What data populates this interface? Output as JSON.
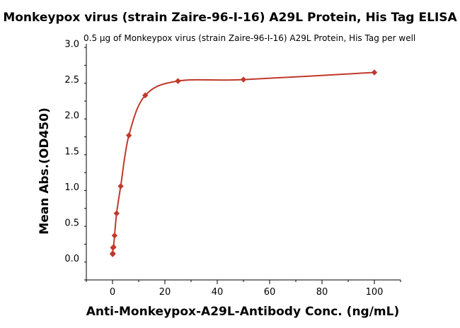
{
  "chart_data": {
    "type": "scatter",
    "title": "Monkeypox virus (strain Zaire-96-I-16) A29L Protein, His Tag ELISA",
    "subtitle": "0.5 μg of Monkeypox virus (strain Zaire-96-I-16) A29L Protein, His Tag per well",
    "xlabel": "Anti-Monkeypox-A29L-Antibody Conc. (ng/mL)",
    "ylabel": "Mean Abs.(OD450)",
    "xlim": [
      -10,
      110
    ],
    "ylim": [
      -0.3,
      3.0
    ],
    "xticks": [
      0,
      20,
      40,
      60,
      80,
      100
    ],
    "xtick_labels": [
      "0",
      "20",
      "40",
      "60",
      "80",
      "100"
    ],
    "yticks": [
      0.0,
      0.5,
      1.0,
      1.5,
      2.0,
      2.5,
      3.0
    ],
    "ytick_labels": [
      "0.0",
      "0.5",
      "1.0",
      "1.5",
      "2.0",
      "2.5",
      "3.0"
    ],
    "grid": false,
    "series": [
      {
        "x": [
          0.049,
          0.098,
          0.195,
          0.39,
          0.78,
          1.56,
          3.125,
          6.25,
          12.5,
          25,
          50,
          100
        ],
        "y": [
          0.06,
          0.07,
          0.15,
          0.16,
          0.32,
          0.63,
          1.01,
          1.72,
          2.28,
          2.48,
          2.5,
          2.6
        ],
        "color": "#c0392b",
        "marker": "diamond",
        "fit_line": true
      }
    ]
  }
}
